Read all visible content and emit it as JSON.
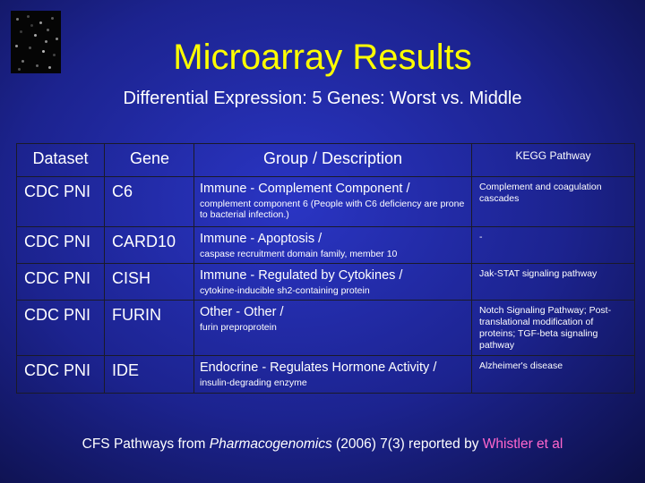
{
  "slide": {
    "title": "Microarray Results",
    "subtitle": "Differential Expression:  5 Genes: Worst vs. Middle"
  },
  "table": {
    "headers": {
      "dataset": "Dataset",
      "gene": "Gene",
      "description": "Group / Description",
      "kegg": "KEGG Pathway"
    },
    "rows": [
      {
        "dataset": "CDC PNI",
        "gene": "C6",
        "group": "Immune - Complement Component /",
        "description": "complement component 6 (People with C6 deficiency are prone to bacterial infection.)",
        "kegg": "Complement and coagulation cascades"
      },
      {
        "dataset": "CDC PNI",
        "gene": "CARD10",
        "group": "Immune - Apoptosis /",
        "description": "caspase recruitment domain family, member 10",
        "kegg": "-"
      },
      {
        "dataset": "CDC PNI",
        "gene": "CISH",
        "group": "Immune - Regulated by Cytokines /",
        "description": "cytokine-inducible sh2-containing protein",
        "kegg": "Jak-STAT signaling pathway"
      },
      {
        "dataset": "CDC PNI",
        "gene": "FURIN",
        "group": "Other - Other /",
        "description": "furin preproprotein",
        "kegg": "Notch Signaling Pathway; Post-translational modification of proteins; TGF-beta signaling pathway"
      },
      {
        "dataset": "CDC PNI",
        "gene": "IDE",
        "group": "Endocrine - Regulates Hormone Activity /",
        "description": "insulin-degrading enzyme",
        "kegg": "Alzheimer's disease"
      }
    ]
  },
  "footer": {
    "prefix": "CFS Pathways from ",
    "journal": "Pharmacogenomics",
    "citation": " (2006) 7(3)  reported by ",
    "author": "Whistler et al"
  },
  "colors": {
    "title": "#ffff00",
    "text": "#ffffff",
    "author": "#ff66cc",
    "background": "#1c238f"
  }
}
